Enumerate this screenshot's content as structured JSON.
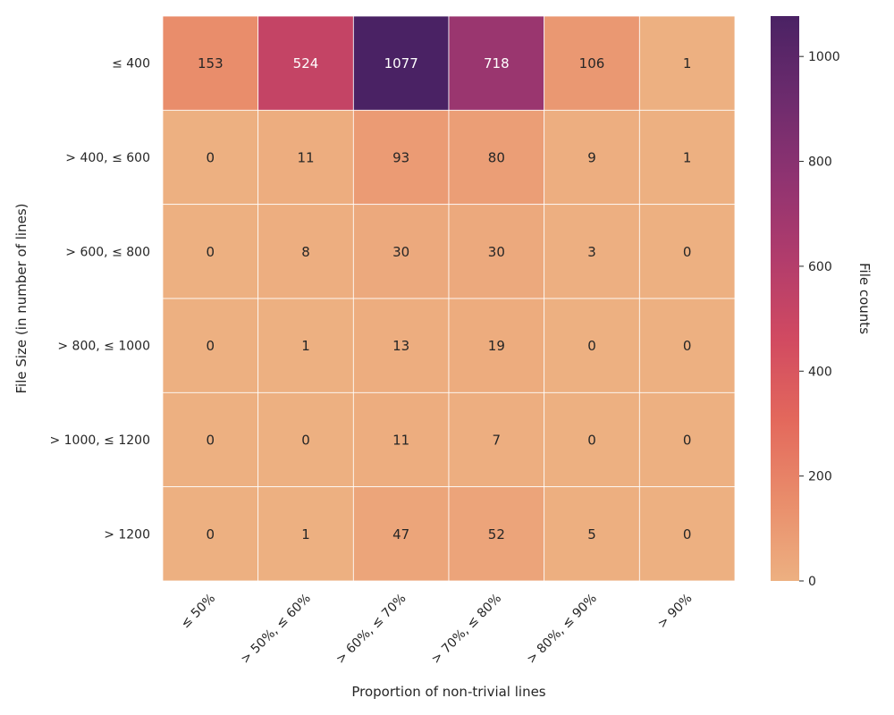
{
  "chart_data": {
    "type": "heatmap",
    "title": "",
    "xlabel": "Proportion of non-trivial lines",
    "ylabel": "File Size (in number of lines)",
    "x_categories": [
      "≤ 50%",
      "> 50%, ≤ 60%",
      "> 60%, ≤ 70%",
      "> 70%, ≤ 80%",
      "> 80%, ≤ 90%",
      "> 90%"
    ],
    "y_categories": [
      "≤ 400",
      "> 400, ≤ 600",
      "> 600, ≤ 800",
      "> 800, ≤ 1000",
      "> 1000, ≤ 1200",
      "> 1200"
    ],
    "values": [
      [
        153,
        524,
        1077,
        718,
        106,
        1
      ],
      [
        0,
        11,
        93,
        80,
        9,
        1
      ],
      [
        0,
        8,
        30,
        30,
        3,
        0
      ],
      [
        0,
        1,
        13,
        19,
        0,
        0
      ],
      [
        0,
        0,
        11,
        7,
        0,
        0
      ],
      [
        0,
        1,
        47,
        52,
        5,
        0
      ]
    ],
    "colorbar": {
      "label": "File counts",
      "range": [
        0,
        1077
      ],
      "ticks": [
        0,
        200,
        400,
        600,
        800,
        1000
      ],
      "colormap": "flare",
      "colors": [
        "#edb081",
        "#e98d6b",
        "#e3685c",
        "#d14a61",
        "#b13c6c",
        "#8f3371",
        "#6c2b6d",
        "#4a2264"
      ]
    },
    "grid": false
  }
}
